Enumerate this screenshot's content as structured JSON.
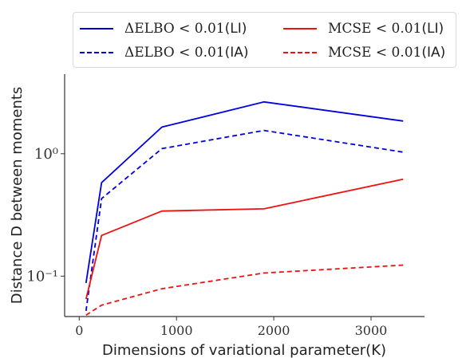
{
  "chart_data": {
    "type": "line",
    "xlabel": "Dimensions of variational parameter(K)",
    "ylabel": "Distance D between moments",
    "xlim": [
      -150,
      3550
    ],
    "ylim_log10": [
      -1.33,
      0.65
    ],
    "y_scale": "log",
    "x_ticks": [
      0,
      1000,
      2000,
      3000
    ],
    "x_tick_labels": [
      "0",
      "1000",
      "2000",
      "3000"
    ],
    "y_ticks": [
      0.1,
      1
    ],
    "y_tick_labels": [
      "10⁻¹",
      "10⁰"
    ],
    "grid": false,
    "legend_position": "top",
    "series": [
      {
        "name": "ΔELBO < 0.01(LI)",
        "color": "#0000dd",
        "dash": "solid",
        "x": [
          70,
          230,
          850,
          1900,
          3330
        ],
        "y": [
          0.088,
          0.58,
          1.65,
          2.65,
          1.85
        ]
      },
      {
        "name": "ΔELBO < 0.01(IA)",
        "color": "#0000dd",
        "dash": "dashed",
        "x": [
          70,
          230,
          850,
          1900,
          3330
        ],
        "y": [
          0.052,
          0.43,
          1.1,
          1.55,
          1.03
        ]
      },
      {
        "name": "MCSE < 0.01(LI)",
        "color": "#ee1111",
        "dash": "solid",
        "x": [
          70,
          230,
          850,
          1900,
          3330
        ],
        "y": [
          0.065,
          0.215,
          0.34,
          0.355,
          0.62
        ]
      },
      {
        "name": "MCSE < 0.01(IA)",
        "color": "#ee1111",
        "dash": "dashed",
        "x": [
          70,
          230,
          850,
          1900,
          3330
        ],
        "y": [
          0.048,
          0.058,
          0.079,
          0.106,
          0.123
        ]
      }
    ],
    "legend_items": [
      {
        "expr": "ΔELBO < 0.01",
        "suffix": "(LI)",
        "color": "#0000dd",
        "dash": "solid"
      },
      {
        "expr": "MCSE < 0.01",
        "suffix": "(LI)",
        "color": "#ee1111",
        "dash": "solid"
      },
      {
        "expr": "ΔELBO < 0.01",
        "suffix": "(IA)",
        "color": "#0000dd",
        "dash": "dashed"
      },
      {
        "expr": "MCSE < 0.01",
        "suffix": "(IA)",
        "color": "#ee1111",
        "dash": "dashed"
      }
    ]
  }
}
